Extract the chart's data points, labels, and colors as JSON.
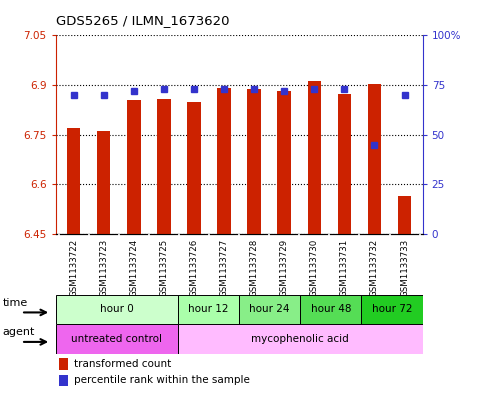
{
  "title": "GDS5265 / ILMN_1673620",
  "samples": [
    "GSM1133722",
    "GSM1133723",
    "GSM1133724",
    "GSM1133725",
    "GSM1133726",
    "GSM1133727",
    "GSM1133728",
    "GSM1133729",
    "GSM1133730",
    "GSM1133731",
    "GSM1133732",
    "GSM1133733"
  ],
  "bar_bottom": 6.45,
  "bar_tops": [
    6.77,
    6.76,
    6.855,
    6.857,
    6.848,
    6.892,
    6.887,
    6.882,
    6.912,
    6.872,
    6.903,
    6.565
  ],
  "percentile_ranks": [
    70,
    70,
    72,
    73,
    73,
    73,
    73,
    72,
    73,
    73,
    45,
    70
  ],
  "ylim_left": [
    6.45,
    7.05
  ],
  "ylim_right": [
    0,
    100
  ],
  "yticks_left": [
    6.45,
    6.6,
    6.75,
    6.9,
    7.05
  ],
  "yticks_right": [
    0,
    25,
    50,
    75,
    100
  ],
  "ytick_labels_left": [
    "6.45",
    "6.6",
    "6.75",
    "6.9",
    "7.05"
  ],
  "ytick_labels_right": [
    "0",
    "25",
    "50",
    "75",
    "100%"
  ],
  "bar_color": "#cc2200",
  "dot_color": "#3333cc",
  "background_plot": "#ffffff",
  "background_sample": "#c8c8c8",
  "time_groups": [
    {
      "label": "hour 0",
      "start": 0,
      "end": 4,
      "color": "#ccffcc"
    },
    {
      "label": "hour 12",
      "start": 4,
      "end": 6,
      "color": "#aaffaa"
    },
    {
      "label": "hour 24",
      "start": 6,
      "end": 8,
      "color": "#88ee88"
    },
    {
      "label": "hour 48",
      "start": 8,
      "end": 10,
      "color": "#55dd55"
    },
    {
      "label": "hour 72",
      "start": 10,
      "end": 12,
      "color": "#22cc22"
    }
  ],
  "agent_groups": [
    {
      "label": "untreated control",
      "start": 0,
      "end": 4,
      "color": "#ee66ee"
    },
    {
      "label": "mycophenolic acid",
      "start": 4,
      "end": 12,
      "color": "#ffbbff"
    }
  ],
  "legend_bar_label": "transformed count",
  "legend_dot_label": "percentile rank within the sample"
}
